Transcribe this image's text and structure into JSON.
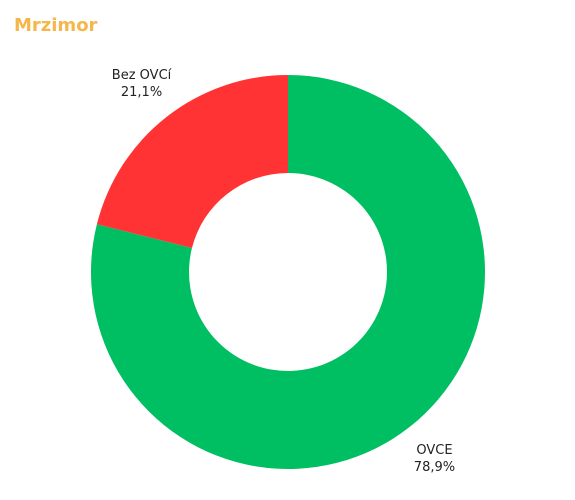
{
  "chart_data": {
    "type": "donut",
    "title": "Mrzimor",
    "categories": [
      "OVCE",
      "Bez OVCí"
    ],
    "values": [
      78.9,
      21.1
    ],
    "value_labels": [
      "78,9%",
      "21,1%"
    ],
    "colors": [
      "#00bf63",
      "#ff3333"
    ]
  }
}
